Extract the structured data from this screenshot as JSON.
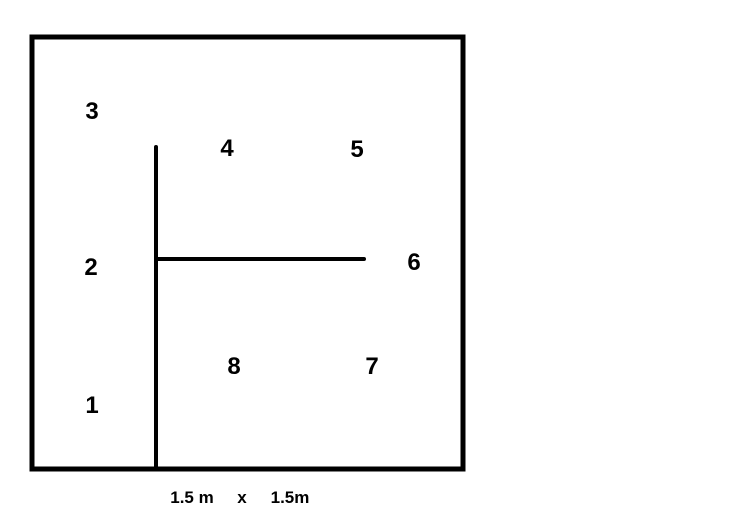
{
  "diagram": {
    "line_color": "#000000",
    "background_color": "#ffffff",
    "labels": [
      "1",
      "2",
      "3",
      "4",
      "5",
      "6",
      "7",
      "8"
    ],
    "dimension": {
      "width": "1.5 m",
      "separator": "x",
      "height": "1.5m"
    }
  }
}
